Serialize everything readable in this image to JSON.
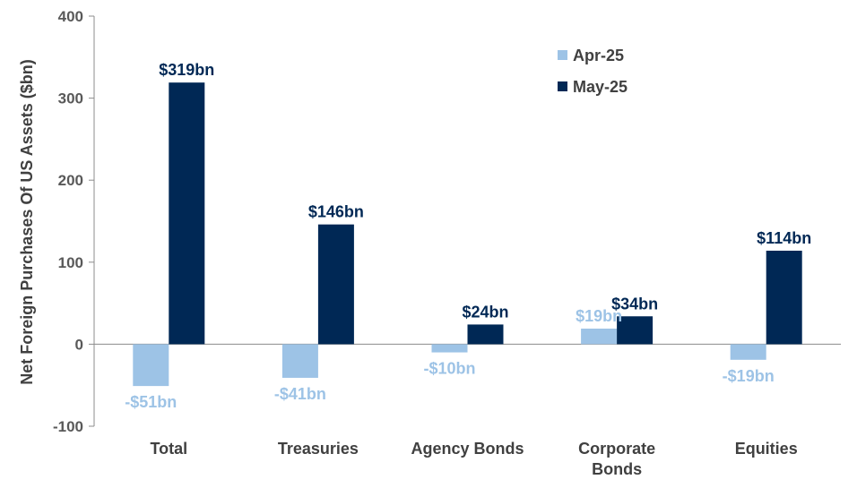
{
  "chart_data": {
    "type": "bar",
    "title": "",
    "xlabel": "",
    "ylabel": "Net Foreign Purchases Of US Assets ($bn)",
    "ylim": [
      -100,
      400
    ],
    "yticks": [
      -100,
      0,
      100,
      200,
      300,
      400
    ],
    "grid": false,
    "legend_position": "top-right",
    "categories": [
      [
        "Total"
      ],
      [
        "Treasuries"
      ],
      [
        "Agency Bonds"
      ],
      [
        "Corporate",
        "Bonds"
      ],
      [
        "Equities"
      ]
    ],
    "series": [
      {
        "name": "Apr-25",
        "color": "#9DC3E6",
        "values": [
          -51,
          -41,
          -10,
          19,
          -19
        ],
        "labels": [
          "-$51bn",
          "-$41bn",
          "-$10bn",
          "$19bn",
          "-$19bn"
        ]
      },
      {
        "name": "May-25",
        "color": "#002855",
        "values": [
          319,
          146,
          24,
          34,
          114
        ],
        "labels": [
          "$319bn",
          "$146bn",
          "$24bn",
          "$34bn",
          "$114bn"
        ]
      }
    ]
  }
}
